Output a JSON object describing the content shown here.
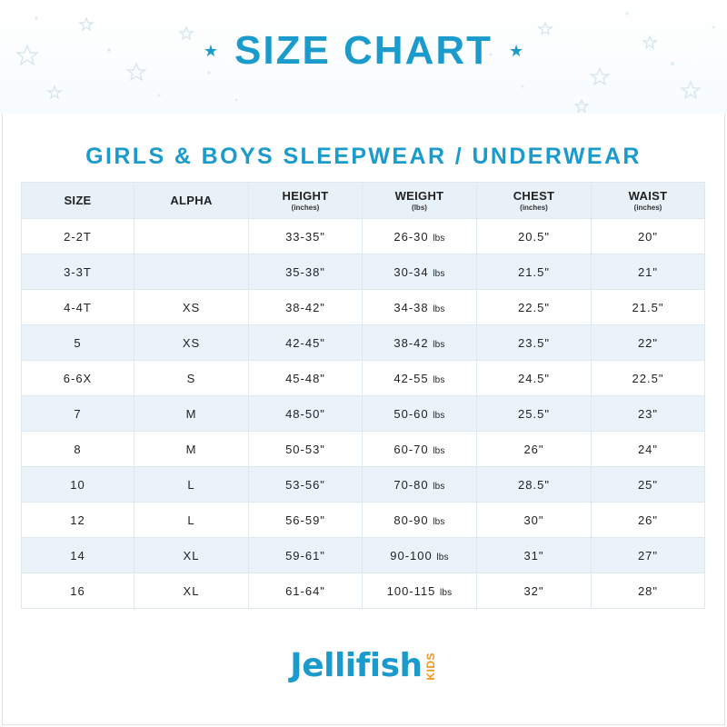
{
  "header": {
    "title": "SIZE CHART",
    "subtitle": "GIRLS & BOYS SLEEPWEAR / UNDERWEAR",
    "title_color": "#1a9bcb"
  },
  "table": {
    "columns": [
      {
        "label": "SIZE",
        "unit": ""
      },
      {
        "label": "ALPHA",
        "unit": ""
      },
      {
        "label": "HEIGHT",
        "unit": "(inches)"
      },
      {
        "label": "WEIGHT",
        "unit": "(lbs)"
      },
      {
        "label": "CHEST",
        "unit": "(inches)"
      },
      {
        "label": "WAIST",
        "unit": "(inches)"
      }
    ],
    "rows": [
      {
        "size": "2-2T",
        "alpha": "",
        "height": "33-35\"",
        "weight": "26-30",
        "chest": "20.5\"",
        "waist": "20\""
      },
      {
        "size": "3-3T",
        "alpha": "",
        "height": "35-38\"",
        "weight": "30-34",
        "chest": "21.5\"",
        "waist": "21\""
      },
      {
        "size": "4-4T",
        "alpha": "XS",
        "height": "38-42\"",
        "weight": "34-38",
        "chest": "22.5\"",
        "waist": "21.5\""
      },
      {
        "size": "5",
        "alpha": "XS",
        "height": "42-45\"",
        "weight": "38-42",
        "chest": "23.5\"",
        "waist": "22\""
      },
      {
        "size": "6-6X",
        "alpha": "S",
        "height": "45-48\"",
        "weight": "42-55",
        "chest": "24.5\"",
        "waist": "22.5\""
      },
      {
        "size": "7",
        "alpha": "M",
        "height": "48-50\"",
        "weight": "50-60",
        "chest": "25.5\"",
        "waist": "23\""
      },
      {
        "size": "8",
        "alpha": "M",
        "height": "50-53\"",
        "weight": "60-70",
        "chest": "26\"",
        "waist": "24\""
      },
      {
        "size": "10",
        "alpha": "L",
        "height": "53-56\"",
        "weight": "70-80",
        "chest": "28.5\"",
        "waist": "25\""
      },
      {
        "size": "12",
        "alpha": "L",
        "height": "56-59\"",
        "weight": "80-90",
        "chest": "30\"",
        "waist": "26\""
      },
      {
        "size": "14",
        "alpha": "XL",
        "height": "59-61\"",
        "weight": "90-100",
        "chest": "31\"",
        "waist": "27\""
      },
      {
        "size": "16",
        "alpha": "XL",
        "height": "61-64\"",
        "weight": "100-115",
        "chest": "32\"",
        "waist": "28\""
      }
    ],
    "weight_unit": "lbs",
    "header_bg": "#e8f1f8",
    "stripe_bg": "#eaf3fa"
  },
  "brand": {
    "name": "Jellifish",
    "suffix": "KIDS",
    "primary_color": "#1a9bcb",
    "accent_color": "#f2941f"
  }
}
